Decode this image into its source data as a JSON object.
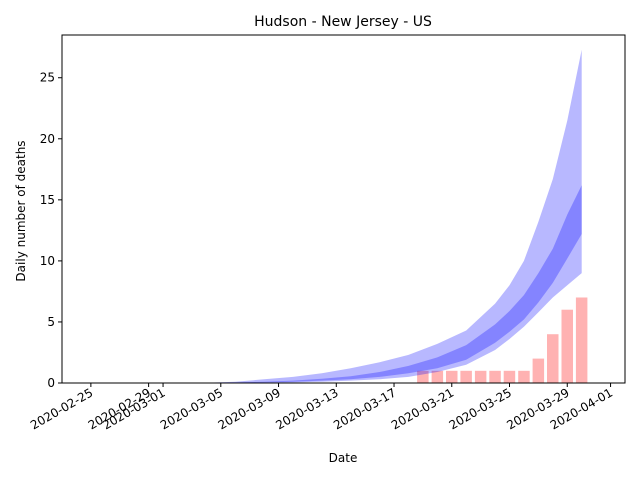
{
  "chart_data": {
    "type": "area",
    "title": "Hudson - New Jersey - US",
    "xlabel": "Date",
    "ylabel": "Daily number of deaths",
    "xlim": [
      "2020-02-23",
      "2020-04-02"
    ],
    "ylim": [
      0,
      28.5
    ],
    "x_ticks": [
      "2020-02-25",
      "2020-02-29",
      "2020-03-01",
      "2020-03-05",
      "2020-03-09",
      "2020-03-13",
      "2020-03-17",
      "2020-03-21",
      "2020-03-25",
      "2020-03-29",
      "2020-04-01"
    ],
    "y_ticks": [
      "0",
      "5",
      "10",
      "15",
      "20",
      "25"
    ],
    "grid": false,
    "colors": {
      "band": "#0000ff",
      "bars": "#ff0000"
    },
    "series": [
      {
        "type": "bar",
        "x": [
          "2020-03-19",
          "2020-03-20",
          "2020-03-21",
          "2020-03-22",
          "2020-03-23",
          "2020-03-24",
          "2020-03-25",
          "2020-03-26",
          "2020-03-27",
          "2020-03-28",
          "2020-03-29",
          "2020-03-30"
        ],
        "values": [
          1,
          1,
          1,
          1,
          1,
          1,
          1,
          1,
          2,
          4,
          6,
          7
        ]
      },
      {
        "type": "band",
        "x": [
          "2020-02-25",
          "2020-02-27",
          "2020-02-29",
          "2020-03-02",
          "2020-03-04",
          "2020-03-06",
          "2020-03-08",
          "2020-03-10",
          "2020-03-12",
          "2020-03-14",
          "2020-03-16",
          "2020-03-18",
          "2020-03-20",
          "2020-03-22",
          "2020-03-24",
          "2020-03-25",
          "2020-03-26",
          "2020-03-27",
          "2020-03-28",
          "2020-03-29",
          "2020-03-30"
        ],
        "lower": [
          0,
          0,
          0,
          0,
          0,
          0,
          0.02,
          0.05,
          0.1,
          0.2,
          0.3,
          0.5,
          0.9,
          1.5,
          2.7,
          3.6,
          4.6,
          5.8,
          7.0,
          8.0,
          9.0
        ],
        "upper": [
          0,
          0,
          0,
          0,
          0.02,
          0.1,
          0.3,
          0.5,
          0.8,
          1.2,
          1.7,
          2.3,
          3.2,
          4.3,
          6.5,
          8.0,
          10.0,
          13.2,
          16.7,
          21.5,
          27.3
        ]
      },
      {
        "type": "band",
        "x": [
          "2020-02-25",
          "2020-02-27",
          "2020-02-29",
          "2020-03-02",
          "2020-03-04",
          "2020-03-06",
          "2020-03-08",
          "2020-03-10",
          "2020-03-12",
          "2020-03-14",
          "2020-03-16",
          "2020-03-18",
          "2020-03-20",
          "2020-03-22",
          "2020-03-24",
          "2020-03-25",
          "2020-03-26",
          "2020-03-27",
          "2020-03-28",
          "2020-03-29",
          "2020-03-30"
        ],
        "lower": [
          0,
          0,
          0,
          0,
          0,
          0.02,
          0.05,
          0.1,
          0.2,
          0.3,
          0.5,
          0.8,
          1.2,
          1.9,
          3.3,
          4.2,
          5.2,
          6.6,
          8.2,
          10.2,
          12.2
        ],
        "upper": [
          0,
          0,
          0,
          0,
          0.02,
          0.05,
          0.1,
          0.2,
          0.35,
          0.55,
          0.9,
          1.4,
          2.1,
          3.1,
          4.8,
          5.9,
          7.2,
          9.0,
          11.0,
          13.8,
          16.2
        ]
      }
    ]
  }
}
